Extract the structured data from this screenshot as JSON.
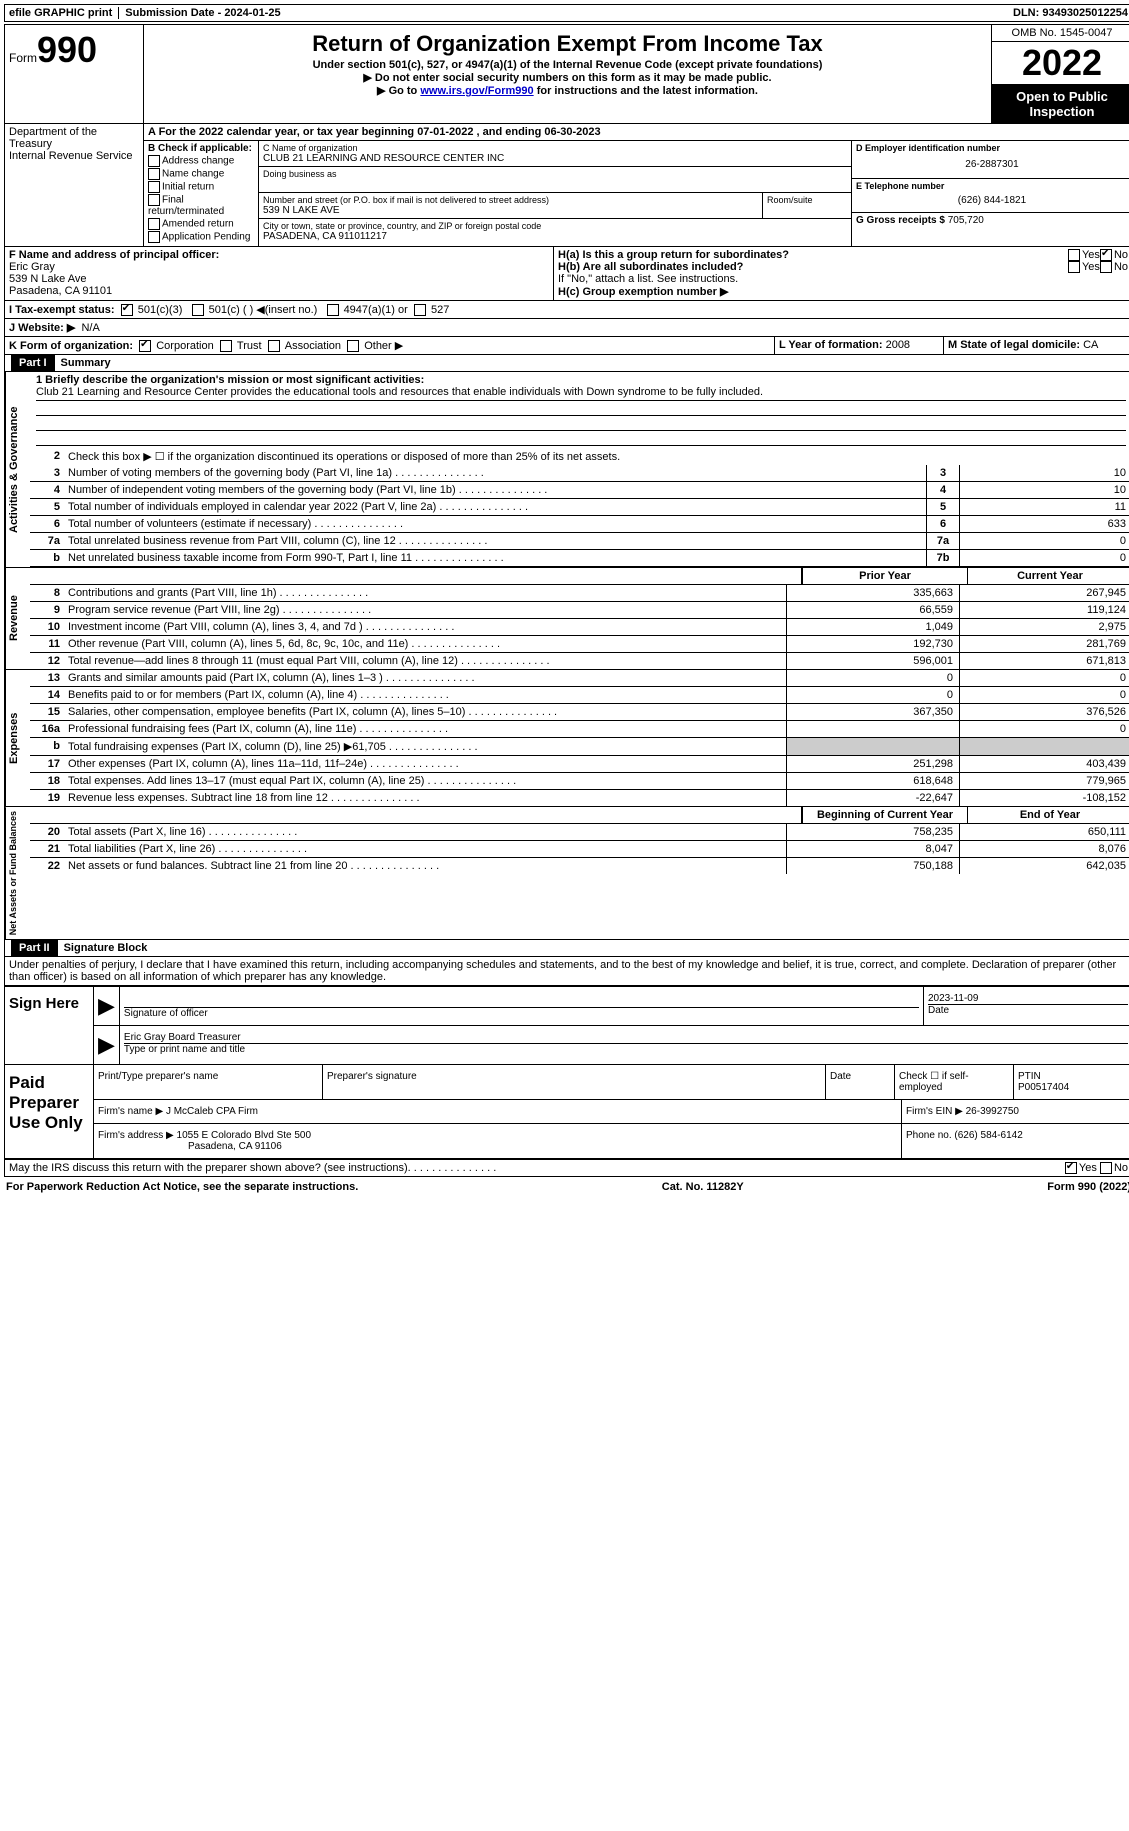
{
  "topbar": {
    "efile": "efile GRAPHIC print",
    "submission": "Submission Date - 2024-01-25",
    "dln": "DLN: 93493025012254"
  },
  "header": {
    "form_word": "Form",
    "form_num": "990",
    "dept": "Department of the Treasury",
    "irs": "Internal Revenue Service",
    "title": "Return of Organization Exempt From Income Tax",
    "sub": "Under section 501(c), 527, or 4947(a)(1) of the Internal Revenue Code (except private foundations)",
    "note1": "▶ Do not enter social security numbers on this form as it may be made public.",
    "note2_pre": "▶ Go to ",
    "note2_link": "www.irs.gov/Form990",
    "note2_post": " for instructions and the latest information.",
    "omb": "OMB No. 1545-0047",
    "year": "2022",
    "inspect": "Open to Public Inspection"
  },
  "lineA": "A For the 2022 calendar year, or tax year beginning 07-01-2022     , and ending 06-30-2023",
  "boxB": {
    "label": "B Check if applicable:",
    "items": [
      "Address change",
      "Name change",
      "Initial return",
      "Final return/terminated",
      "Amended return",
      "Application Pending"
    ]
  },
  "boxC": {
    "name_lbl": "C Name of organization",
    "name": "CLUB 21 LEARNING AND RESOURCE CENTER INC",
    "dba_lbl": "Doing business as",
    "street_lbl": "Number and street (or P.O. box if mail is not delivered to street address)",
    "room_lbl": "Room/suite",
    "street": "539 N LAKE AVE",
    "city_lbl": "City or town, state or province, country, and ZIP or foreign postal code",
    "city": "PASADENA, CA  911011217"
  },
  "boxD": {
    "lbl": "D Employer identification number",
    "val": "26-2887301"
  },
  "boxE": {
    "lbl": "E Telephone number",
    "val": "(626) 844-1821"
  },
  "boxG": {
    "lbl": "G Gross receipts $",
    "val": "705,720"
  },
  "boxF": {
    "lbl": "F  Name and address of principal officer:",
    "name": "Eric Gray",
    "addr1": "539 N Lake Ave",
    "addr2": "Pasadena, CA  91101"
  },
  "boxH": {
    "ha": "H(a)  Is this a group return for subordinates?",
    "hb": "H(b)  Are all subordinates included?",
    "hb_note": "If \"No,\" attach a list. See instructions.",
    "hc": "H(c)  Group exemption number ▶",
    "yes": "Yes",
    "no": "No"
  },
  "boxI": {
    "lbl": "I  Tax-exempt status:",
    "a": "501(c)(3)",
    "b": "501(c) (  ) ◀(insert no.)",
    "c": "4947(a)(1) or",
    "d": "527"
  },
  "boxJ": {
    "lbl": "J  Website: ▶",
    "val": "N/A"
  },
  "boxK": {
    "lbl": "K Form of organization:",
    "a": "Corporation",
    "b": "Trust",
    "c": "Association",
    "d": "Other ▶"
  },
  "boxL": {
    "lbl": "L Year of formation:",
    "val": "2008"
  },
  "boxM": {
    "lbl": "M State of legal domicile:",
    "val": "CA"
  },
  "part1": {
    "label": "Part I",
    "title": "Summary"
  },
  "summary": {
    "mission_lbl": "1   Briefly describe the organization's mission or most significant activities:",
    "mission": "Club 21 Learning and Resource Center provides the educational tools and resources that enable individuals with Down syndrome to be fully included.",
    "line2": "Check this box ▶ ☐  if the organization discontinued its operations or disposed of more than 25% of its net assets.",
    "gov": [
      {
        "n": "3",
        "t": "Number of voting members of the governing body (Part VI, line 1a)",
        "b": "3",
        "v": "10"
      },
      {
        "n": "4",
        "t": "Number of independent voting members of the governing body (Part VI, line 1b)",
        "b": "4",
        "v": "10"
      },
      {
        "n": "5",
        "t": "Total number of individuals employed in calendar year 2022 (Part V, line 2a)",
        "b": "5",
        "v": "11"
      },
      {
        "n": "6",
        "t": "Total number of volunteers (estimate if necessary)",
        "b": "6",
        "v": "633"
      },
      {
        "n": "7a",
        "t": "Total unrelated business revenue from Part VIII, column (C), line 12",
        "b": "7a",
        "v": "0"
      },
      {
        "n": "b",
        "t": "Net unrelated business taxable income from Form 990-T, Part I, line 11",
        "b": "7b",
        "v": "0"
      }
    ],
    "prior_hdr": "Prior Year",
    "current_hdr": "Current Year",
    "rev": [
      {
        "n": "8",
        "t": "Contributions and grants (Part VIII, line 1h)",
        "p": "335,663",
        "c": "267,945"
      },
      {
        "n": "9",
        "t": "Program service revenue (Part VIII, line 2g)",
        "p": "66,559",
        "c": "119,124"
      },
      {
        "n": "10",
        "t": "Investment income (Part VIII, column (A), lines 3, 4, and 7d )",
        "p": "1,049",
        "c": "2,975"
      },
      {
        "n": "11",
        "t": "Other revenue (Part VIII, column (A), lines 5, 6d, 8c, 9c, 10c, and 11e)",
        "p": "192,730",
        "c": "281,769"
      },
      {
        "n": "12",
        "t": "Total revenue—add lines 8 through 11 (must equal Part VIII, column (A), line 12)",
        "p": "596,001",
        "c": "671,813"
      }
    ],
    "exp": [
      {
        "n": "13",
        "t": "Grants and similar amounts paid (Part IX, column (A), lines 1–3 )",
        "p": "0",
        "c": "0"
      },
      {
        "n": "14",
        "t": "Benefits paid to or for members (Part IX, column (A), line 4)",
        "p": "0",
        "c": "0"
      },
      {
        "n": "15",
        "t": "Salaries, other compensation, employee benefits (Part IX, column (A), lines 5–10)",
        "p": "367,350",
        "c": "376,526"
      },
      {
        "n": "16a",
        "t": "Professional fundraising fees (Part IX, column (A), line 11e)",
        "p": "",
        "c": "0"
      },
      {
        "n": "b",
        "t": "Total fundraising expenses (Part IX, column (D), line 25) ▶61,705",
        "p": "grey",
        "c": "grey"
      },
      {
        "n": "17",
        "t": "Other expenses (Part IX, column (A), lines 11a–11d, 11f–24e)",
        "p": "251,298",
        "c": "403,439"
      },
      {
        "n": "18",
        "t": "Total expenses. Add lines 13–17 (must equal Part IX, column (A), line 25)",
        "p": "618,648",
        "c": "779,965"
      },
      {
        "n": "19",
        "t": "Revenue less expenses. Subtract line 18 from line 12",
        "p": "-22,647",
        "c": "-108,152"
      }
    ],
    "bal_hdr_p": "Beginning of Current Year",
    "bal_hdr_c": "End of Year",
    "bal": [
      {
        "n": "20",
        "t": "Total assets (Part X, line 16)",
        "p": "758,235",
        "c": "650,111"
      },
      {
        "n": "21",
        "t": "Total liabilities (Part X, line 26)",
        "p": "8,047",
        "c": "8,076"
      },
      {
        "n": "22",
        "t": "Net assets or fund balances. Subtract line 21 from line 20",
        "p": "750,188",
        "c": "642,035"
      }
    ],
    "side_gov": "Activities & Governance",
    "side_rev": "Revenue",
    "side_exp": "Expenses",
    "side_bal": "Net Assets or Fund Balances"
  },
  "part2": {
    "label": "Part II",
    "title": "Signature Block"
  },
  "sig": {
    "decl": "Under penalties of perjury, I declare that I have examined this return, including accompanying schedules and statements, and to the best of my knowledge and belief, it is true, correct, and complete. Declaration of preparer (other than officer) is based on all information of which preparer has any knowledge.",
    "sign_here": "Sign Here",
    "sig_officer": "Signature of officer",
    "date": "Date",
    "date_val": "2023-11-09",
    "name_title": "Eric Gray  Board Treasurer",
    "type_name": "Type or print name and title",
    "paid": "Paid Preparer Use Only",
    "prep_name_lbl": "Print/Type preparer's name",
    "prep_sig_lbl": "Preparer's signature",
    "check_se": "Check ☐ if self-employed",
    "ptin_lbl": "PTIN",
    "ptin": "P00517404",
    "firm_name_lbl": "Firm's name    ▶",
    "firm_name": "J McCaleb CPA Firm",
    "firm_ein_lbl": "Firm's EIN ▶",
    "firm_ein": "26-3992750",
    "firm_addr_lbl": "Firm's address ▶",
    "firm_addr1": "1055 E Colorado Blvd Ste 500",
    "firm_addr2": "Pasadena, CA  91106",
    "phone_lbl": "Phone no.",
    "phone": "(626) 584-6142"
  },
  "may_line": "May the IRS discuss this return with the preparer shown above? (see instructions)",
  "footer": {
    "left": "For Paperwork Reduction Act Notice, see the separate instructions.",
    "mid": "Cat. No. 11282Y",
    "right": "Form 990 (2022)"
  }
}
